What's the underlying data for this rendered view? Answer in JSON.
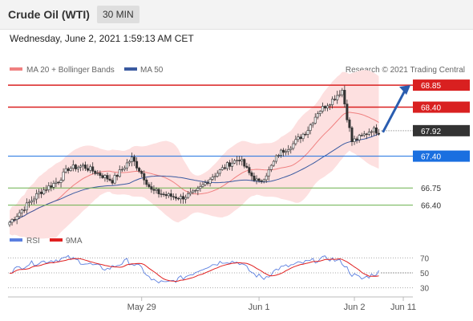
{
  "header": {
    "title": "Crude Oil (WTI)",
    "timeframe": "30 MIN",
    "datetime": "Wednesday, June 2, 2021 1:59:13 AM CET"
  },
  "legend": {
    "ma20_label": "MA 20 + Bollinger Bands",
    "ma50_label": "MA 50",
    "credit": "Research © 2021 Trading Central",
    "rsi_label": "RSI",
    "rsi_ma_label": "9MA"
  },
  "colors": {
    "resistance": "#d92020",
    "current": "#333333",
    "pivot": "#1a6fe0",
    "support": "#6ab04c",
    "ma20": "#f08080",
    "ma50": "#3a5aa0",
    "band": "#fde0e0",
    "candle_up": "#ffffff",
    "candle_down": "#333333",
    "rsi": "#5b7fe0",
    "rsi_ma": "#e02020",
    "arrow": "#2a5db0"
  },
  "chart_data": {
    "type": "candlestick",
    "price_range": [
      66.0,
      68.95
    ],
    "levels": [
      {
        "value": 68.85,
        "label": "68.85",
        "kind": "resistance",
        "boxed": true
      },
      {
        "value": 68.4,
        "label": "68.40",
        "kind": "resistance",
        "boxed": true
      },
      {
        "value": 67.92,
        "label": "67.92",
        "kind": "current",
        "boxed": true
      },
      {
        "value": 67.4,
        "label": "67.40",
        "kind": "pivot",
        "boxed": true
      },
      {
        "value": 66.75,
        "label": "66.75",
        "kind": "support",
        "boxed": false
      },
      {
        "value": 66.4,
        "label": "66.40",
        "kind": "support",
        "boxed": false
      }
    ],
    "x_ticks": [
      "May 29",
      "Jun 1",
      "Jun 2",
      "Jun 11"
    ],
    "x_tick_index": [
      54,
      102,
      141,
      161
    ],
    "candle_count": 152,
    "price_anchors": [
      [
        0,
        66.05
      ],
      [
        6,
        66.35
      ],
      [
        12,
        66.65
      ],
      [
        20,
        66.9
      ],
      [
        24,
        67.15
      ],
      [
        30,
        67.2
      ],
      [
        36,
        67.05
      ],
      [
        42,
        66.9
      ],
      [
        48,
        67.25
      ],
      [
        50,
        67.35
      ],
      [
        54,
        67.05
      ],
      [
        58,
        66.7
      ],
      [
        64,
        66.6
      ],
      [
        70,
        66.55
      ],
      [
        76,
        66.65
      ],
      [
        82,
        66.95
      ],
      [
        90,
        67.25
      ],
      [
        94,
        67.35
      ],
      [
        98,
        67.05
      ],
      [
        102,
        66.85
      ],
      [
        106,
        67.1
      ],
      [
        110,
        67.45
      ],
      [
        116,
        67.65
      ],
      [
        122,
        67.95
      ],
      [
        126,
        68.3
      ],
      [
        132,
        68.55
      ],
      [
        136,
        68.75
      ],
      [
        138,
        68.2
      ],
      [
        140,
        67.7
      ],
      [
        144,
        67.8
      ],
      [
        148,
        67.95
      ],
      [
        151,
        67.9
      ]
    ],
    "rsi": {
      "levels": [
        70,
        50,
        30
      ],
      "range": [
        20,
        80
      ],
      "anchors": [
        [
          0,
          52
        ],
        [
          8,
          62
        ],
        [
          16,
          66
        ],
        [
          24,
          70
        ],
        [
          32,
          62
        ],
        [
          40,
          55
        ],
        [
          48,
          66
        ],
        [
          54,
          56
        ],
        [
          58,
          40
        ],
        [
          64,
          36
        ],
        [
          72,
          45
        ],
        [
          80,
          58
        ],
        [
          88,
          66
        ],
        [
          94,
          64
        ],
        [
          100,
          48
        ],
        [
          104,
          43
        ],
        [
          110,
          56
        ],
        [
          118,
          62
        ],
        [
          124,
          66
        ],
        [
          130,
          70
        ],
        [
          136,
          64
        ],
        [
          140,
          48
        ],
        [
          144,
          42
        ],
        [
          148,
          47
        ],
        [
          151,
          51
        ]
      ]
    },
    "forecast_arrow": {
      "from_index": 152,
      "from_value": 67.92,
      "to_value": 68.85
    }
  }
}
